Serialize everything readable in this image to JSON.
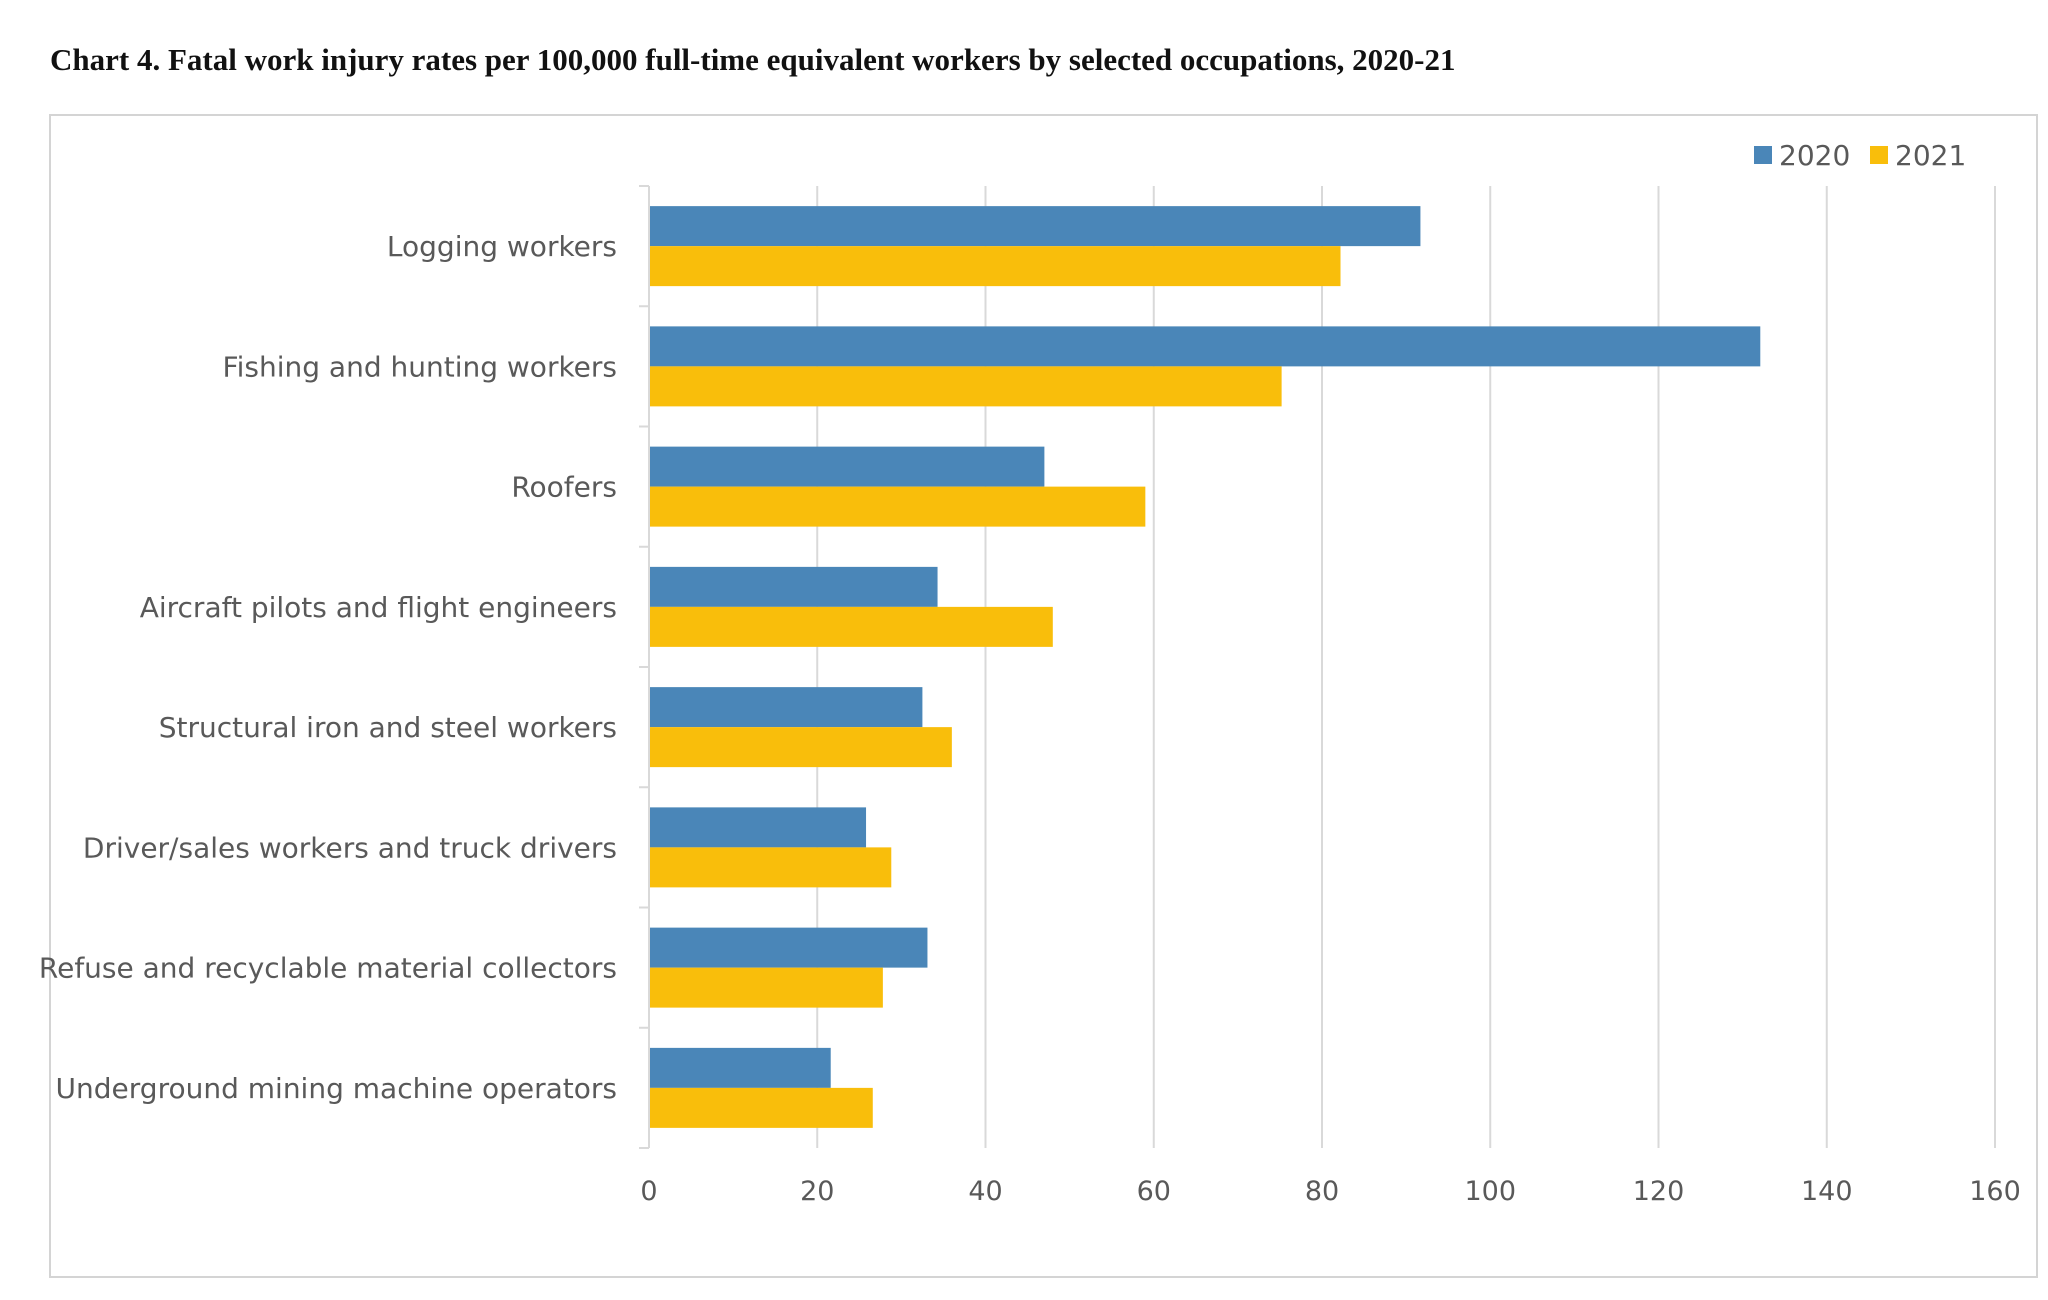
{
  "chart_data": {
    "type": "bar",
    "orientation": "horizontal",
    "title": "Chart 4. Fatal work injury rates per 100,000 full-time equivalent workers by selected occupations, 2020-21",
    "xlabel": "",
    "ylabel": "",
    "xlim": [
      0,
      160
    ],
    "xticks": [
      "0",
      "20",
      "40",
      "60",
      "80",
      "100",
      "120",
      "140",
      "160"
    ],
    "grid": true,
    "legend_position": "top-right",
    "categories": [
      "Logging workers",
      "Fishing and hunting workers",
      "Roofers",
      "Aircraft pilots and flight engineers",
      "Structural iron and steel workers",
      "Driver/sales workers and truck drivers",
      "Refuse and recyclable material collectors",
      "Underground mining machine operators"
    ],
    "series": [
      {
        "name": "2020",
        "color": "#4A86B8",
        "values": [
          91.7,
          132.1,
          47.0,
          34.3,
          32.5,
          25.8,
          33.1,
          21.6
        ]
      },
      {
        "name": "2021",
        "color": "#F9BE0B",
        "values": [
          82.2,
          75.2,
          59.0,
          48.0,
          36.0,
          28.8,
          27.8,
          26.6
        ]
      }
    ]
  }
}
